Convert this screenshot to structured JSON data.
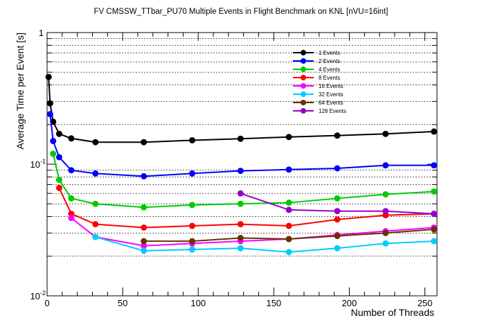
{
  "chart_data": {
    "type": "line",
    "title": "FV CMSSW_TTbar_PU70 Multiple Events in Flight Benchmark on KNL [nVU=16int]",
    "xlabel": "Number of Threads",
    "ylabel": "Average Time per Event [s]",
    "xlim": [
      0,
      258
    ],
    "ylim": [
      0.01,
      1
    ],
    "yscale": "log",
    "x_ticks": [
      0,
      50,
      100,
      150,
      200,
      250
    ],
    "x_tick_labels": [
      "0",
      "50",
      "100",
      "150",
      "200",
      "250"
    ],
    "y_tick_labels": {
      "base": "10",
      "major": [
        {
          "value": 1,
          "label": "1"
        },
        {
          "value": 0.1,
          "label": "10",
          "exp": "-1"
        },
        {
          "value": 0.01,
          "label": "10",
          "exp": "-2"
        }
      ]
    },
    "grid": {
      "y": "dotted"
    },
    "legend_position": "top-right",
    "series": [
      {
        "name": "1 Events",
        "color": "#000000",
        "x": [
          1,
          2,
          4,
          8,
          16,
          32,
          64,
          96,
          128,
          160,
          192,
          224,
          256
        ],
        "y": [
          0.46,
          0.29,
          0.21,
          0.17,
          0.157,
          0.147,
          0.147,
          0.152,
          0.156,
          0.161,
          0.165,
          0.17,
          0.177
        ]
      },
      {
        "name": "2 Events",
        "color": "#0000ff",
        "x": [
          2,
          4,
          8,
          16,
          32,
          64,
          96,
          128,
          160,
          192,
          224,
          256
        ],
        "y": [
          0.24,
          0.15,
          0.113,
          0.09,
          0.085,
          0.081,
          0.085,
          0.089,
          0.091,
          0.093,
          0.098,
          0.098
        ]
      },
      {
        "name": "4 Events",
        "color": "#00cc00",
        "x": [
          4,
          8,
          16,
          32,
          64,
          96,
          128,
          160,
          192,
          224,
          256
        ],
        "y": [
          0.12,
          0.076,
          0.055,
          0.05,
          0.047,
          0.049,
          0.05,
          0.051,
          0.055,
          0.059,
          0.062
        ]
      },
      {
        "name": "8 Events",
        "color": "#ff0000",
        "x": [
          8,
          16,
          32,
          64,
          96,
          128,
          160,
          192,
          224,
          256
        ],
        "y": [
          0.066,
          0.042,
          0.035,
          0.033,
          0.034,
          0.035,
          0.034,
          0.038,
          0.041,
          0.042
        ]
      },
      {
        "name": "16 Events",
        "color": "#ff00ff",
        "x": [
          16,
          32,
          64,
          96,
          128,
          160,
          192,
          224,
          256
        ],
        "y": [
          0.039,
          0.028,
          0.024,
          0.025,
          0.026,
          0.027,
          0.029,
          0.031,
          0.033
        ]
      },
      {
        "name": "32 Events",
        "color": "#00ccff",
        "x": [
          32,
          64,
          96,
          128,
          160,
          192,
          224,
          256
        ],
        "y": [
          0.028,
          0.022,
          0.0225,
          0.023,
          0.0215,
          0.023,
          0.025,
          0.026
        ]
      },
      {
        "name": "64 Events",
        "color": "#663300",
        "x": [
          64,
          96,
          128,
          160,
          192,
          224,
          256
        ],
        "y": [
          0.026,
          0.026,
          0.0275,
          0.027,
          0.0285,
          0.03,
          0.032
        ]
      },
      {
        "name": "128 Events",
        "color": "#9900cc",
        "x": [
          128,
          160,
          192,
          224,
          256
        ],
        "y": [
          0.06,
          0.045,
          0.044,
          0.044,
          0.042
        ]
      }
    ]
  }
}
